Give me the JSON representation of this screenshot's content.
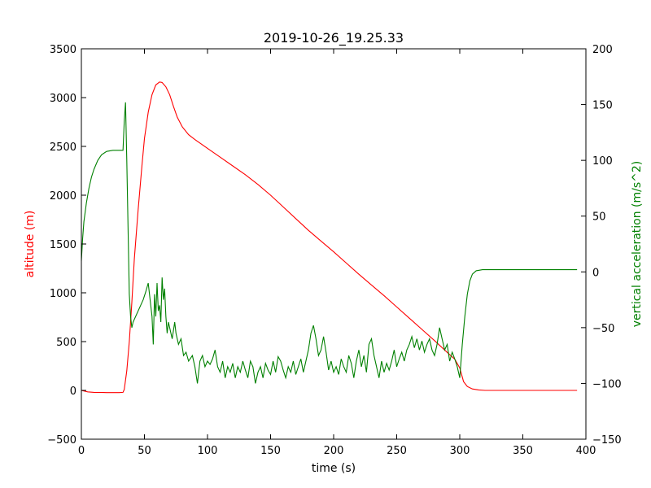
{
  "chart_data": {
    "type": "line",
    "title": "2019-10-26_19.25.33",
    "xlabel": "time (s)",
    "xlim": [
      0,
      400
    ],
    "x_ticks": [
      0,
      50,
      100,
      150,
      200,
      250,
      300,
      350,
      400
    ],
    "left_axis": {
      "label": "altitude (m)",
      "color": "#ff0000",
      "ylim": [
        -500,
        3500
      ],
      "ticks": [
        -500,
        0,
        500,
        1000,
        1500,
        2000,
        2500,
        3000,
        3500
      ]
    },
    "right_axis": {
      "label": "vertical acceleration (m/s^2)",
      "color": "#008000",
      "ylim": [
        -150,
        200
      ],
      "ticks": [
        -150,
        -100,
        -50,
        0,
        50,
        100,
        150,
        200
      ]
    },
    "grid": false,
    "series": [
      {
        "axis": "left",
        "color": "#ff0000",
        "points": [
          [
            0,
            0
          ],
          [
            5,
            -15
          ],
          [
            10,
            -20
          ],
          [
            20,
            -22
          ],
          [
            30,
            -22
          ],
          [
            33,
            -20
          ],
          [
            34,
            10
          ],
          [
            36,
            200
          ],
          [
            38,
            500
          ],
          [
            40,
            900
          ],
          [
            42,
            1350
          ],
          [
            45,
            1850
          ],
          [
            48,
            2300
          ],
          [
            50,
            2580
          ],
          [
            53,
            2850
          ],
          [
            56,
            3030
          ],
          [
            59,
            3130
          ],
          [
            62,
            3160
          ],
          [
            64,
            3155
          ],
          [
            67,
            3110
          ],
          [
            70,
            3030
          ],
          [
            73,
            2910
          ],
          [
            76,
            2800
          ],
          [
            80,
            2700
          ],
          [
            85,
            2620
          ],
          [
            90,
            2570
          ],
          [
            100,
            2480
          ],
          [
            110,
            2390
          ],
          [
            120,
            2300
          ],
          [
            130,
            2210
          ],
          [
            140,
            2110
          ],
          [
            150,
            2000
          ],
          [
            160,
            1880
          ],
          [
            170,
            1760
          ],
          [
            180,
            1640
          ],
          [
            190,
            1530
          ],
          [
            200,
            1420
          ],
          [
            210,
            1305
          ],
          [
            220,
            1190
          ],
          [
            230,
            1080
          ],
          [
            240,
            970
          ],
          [
            250,
            855
          ],
          [
            260,
            740
          ],
          [
            270,
            625
          ],
          [
            280,
            510
          ],
          [
            290,
            390
          ],
          [
            296,
            320
          ],
          [
            300,
            230
          ],
          [
            303,
            90
          ],
          [
            306,
            40
          ],
          [
            310,
            15
          ],
          [
            315,
            5
          ],
          [
            320,
            0
          ],
          [
            340,
            0
          ],
          [
            360,
            0
          ],
          [
            380,
            0
          ],
          [
            393,
            0
          ]
        ]
      },
      {
        "axis": "right",
        "color": "#008000",
        "points": [
          [
            0,
            10
          ],
          [
            1,
            30
          ],
          [
            2,
            45
          ],
          [
            4,
            62
          ],
          [
            6,
            75
          ],
          [
            8,
            85
          ],
          [
            10,
            92
          ],
          [
            13,
            100
          ],
          [
            16,
            105
          ],
          [
            20,
            108
          ],
          [
            25,
            109
          ],
          [
            30,
            109
          ],
          [
            33,
            109
          ],
          [
            34,
            135
          ],
          [
            35,
            152
          ],
          [
            36,
            100
          ],
          [
            37,
            40
          ],
          [
            38,
            -20
          ],
          [
            39,
            -40
          ],
          [
            40,
            -50
          ],
          [
            41,
            -45
          ],
          [
            43,
            -40
          ],
          [
            45,
            -35
          ],
          [
            47,
            -30
          ],
          [
            49,
            -25
          ],
          [
            51,
            -18
          ],
          [
            53,
            -10
          ],
          [
            54,
            -20
          ],
          [
            55,
            -30
          ],
          [
            56,
            -40
          ],
          [
            57,
            -65
          ],
          [
            58,
            -20
          ],
          [
            59,
            -40
          ],
          [
            60,
            -10
          ],
          [
            61,
            -35
          ],
          [
            62,
            -30
          ],
          [
            63,
            -45
          ],
          [
            64,
            -5
          ],
          [
            65,
            -25
          ],
          [
            66,
            -15
          ],
          [
            67,
            -40
          ],
          [
            68,
            -55
          ],
          [
            69,
            -45
          ],
          [
            70,
            -50
          ],
          [
            72,
            -60
          ],
          [
            74,
            -45
          ],
          [
            75,
            -55
          ],
          [
            77,
            -65
          ],
          [
            79,
            -60
          ],
          [
            81,
            -75
          ],
          [
            83,
            -72
          ],
          [
            85,
            -80
          ],
          [
            88,
            -75
          ],
          [
            90,
            -85
          ],
          [
            92,
            -100
          ],
          [
            94,
            -80
          ],
          [
            96,
            -75
          ],
          [
            98,
            -85
          ],
          [
            100,
            -80
          ],
          [
            102,
            -83
          ],
          [
            104,
            -78
          ],
          [
            106,
            -70
          ],
          [
            108,
            -85
          ],
          [
            110,
            -90
          ],
          [
            112,
            -80
          ],
          [
            114,
            -95
          ],
          [
            116,
            -85
          ],
          [
            118,
            -90
          ],
          [
            120,
            -82
          ],
          [
            122,
            -95
          ],
          [
            124,
            -85
          ],
          [
            126,
            -90
          ],
          [
            128,
            -80
          ],
          [
            130,
            -88
          ],
          [
            132,
            -95
          ],
          [
            134,
            -80
          ],
          [
            136,
            -85
          ],
          [
            138,
            -100
          ],
          [
            140,
            -90
          ],
          [
            142,
            -85
          ],
          [
            144,
            -95
          ],
          [
            146,
            -82
          ],
          [
            148,
            -88
          ],
          [
            150,
            -92
          ],
          [
            152,
            -80
          ],
          [
            154,
            -90
          ],
          [
            156,
            -76
          ],
          [
            158,
            -80
          ],
          [
            160,
            -88
          ],
          [
            162,
            -95
          ],
          [
            164,
            -85
          ],
          [
            166,
            -90
          ],
          [
            168,
            -80
          ],
          [
            170,
            -92
          ],
          [
            172,
            -85
          ],
          [
            174,
            -78
          ],
          [
            176,
            -90
          ],
          [
            178,
            -80
          ],
          [
            180,
            -70
          ],
          [
            182,
            -55
          ],
          [
            184,
            -48
          ],
          [
            186,
            -60
          ],
          [
            188,
            -75
          ],
          [
            190,
            -70
          ],
          [
            192,
            -58
          ],
          [
            194,
            -72
          ],
          [
            196,
            -88
          ],
          [
            198,
            -80
          ],
          [
            200,
            -90
          ],
          [
            202,
            -85
          ],
          [
            204,
            -92
          ],
          [
            206,
            -78
          ],
          [
            208,
            -85
          ],
          [
            210,
            -90
          ],
          [
            212,
            -75
          ],
          [
            214,
            -82
          ],
          [
            216,
            -95
          ],
          [
            218,
            -80
          ],
          [
            220,
            -70
          ],
          [
            222,
            -85
          ],
          [
            224,
            -75
          ],
          [
            226,
            -90
          ],
          [
            228,
            -65
          ],
          [
            230,
            -60
          ],
          [
            232,
            -75
          ],
          [
            234,
            -85
          ],
          [
            236,
            -95
          ],
          [
            238,
            -80
          ],
          [
            240,
            -90
          ],
          [
            242,
            -82
          ],
          [
            244,
            -88
          ],
          [
            246,
            -80
          ],
          [
            248,
            -70
          ],
          [
            250,
            -85
          ],
          [
            252,
            -78
          ],
          [
            254,
            -72
          ],
          [
            256,
            -80
          ],
          [
            258,
            -70
          ],
          [
            260,
            -65
          ],
          [
            262,
            -58
          ],
          [
            264,
            -68
          ],
          [
            266,
            -60
          ],
          [
            268,
            -70
          ],
          [
            270,
            -62
          ],
          [
            272,
            -72
          ],
          [
            274,
            -65
          ],
          [
            276,
            -60
          ],
          [
            278,
            -70
          ],
          [
            280,
            -75
          ],
          [
            282,
            -65
          ],
          [
            284,
            -50
          ],
          [
            286,
            -60
          ],
          [
            288,
            -70
          ],
          [
            290,
            -65
          ],
          [
            292,
            -80
          ],
          [
            294,
            -72
          ],
          [
            296,
            -78
          ],
          [
            298,
            -85
          ],
          [
            300,
            -95
          ],
          [
            302,
            -65
          ],
          [
            304,
            -40
          ],
          [
            306,
            -20
          ],
          [
            308,
            -8
          ],
          [
            310,
            -2
          ],
          [
            313,
            1
          ],
          [
            318,
            2
          ],
          [
            330,
            2
          ],
          [
            350,
            2
          ],
          [
            370,
            2
          ],
          [
            393,
            2
          ]
        ]
      }
    ]
  }
}
